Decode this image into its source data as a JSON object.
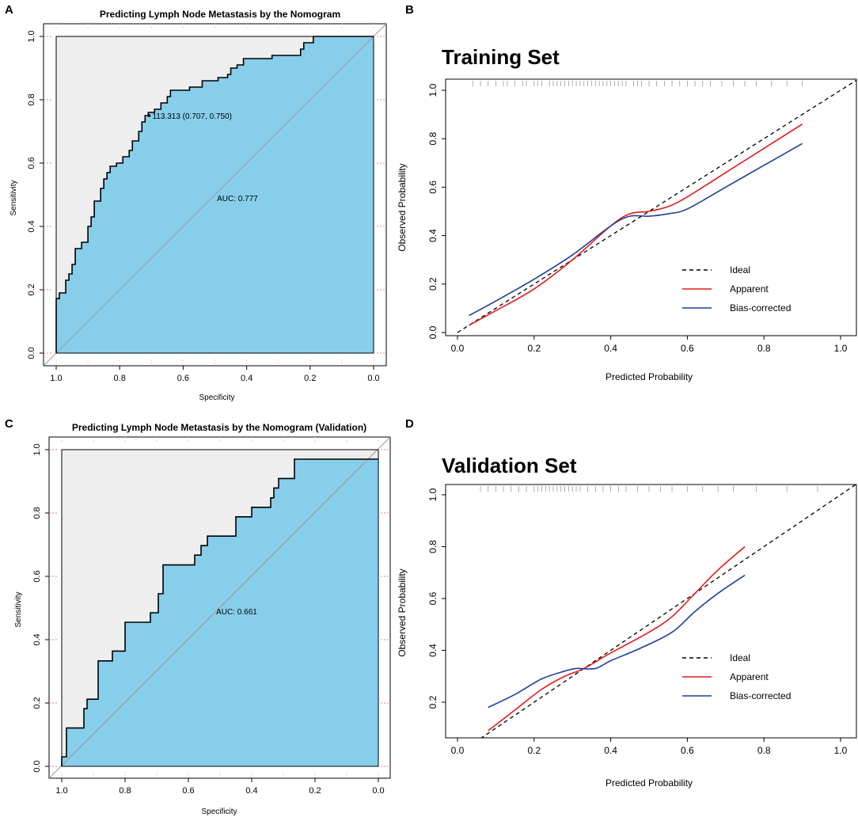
{
  "colors": {
    "roc_fill": "#87CEEB",
    "roc_background": "#EEEEEE",
    "roc_curve": "#000000",
    "diagonal": "#999999",
    "grid_x": "#E8D890",
    "grid_y": "#F08080",
    "ideal": "#000000",
    "apparent": "#E41A1C",
    "bias_corrected": "#1F3F9A",
    "rug": "#999999"
  },
  "panels": {
    "A": {
      "letter": "A"
    },
    "B": {
      "letter": "B"
    },
    "C": {
      "letter": "C"
    },
    "D": {
      "letter": "D"
    }
  },
  "chart_data": [
    {
      "id": "A",
      "type": "area",
      "title": "Predicting Lymph Node Metastasis by the Nomogram",
      "xlabel": "Specificity",
      "ylabel": "Sensitivity",
      "xlim": [
        1.0,
        0.0
      ],
      "ylim": [
        0.0,
        1.0
      ],
      "x_ticks": [
        "1.0",
        "0.8",
        "0.6",
        "0.4",
        "0.2",
        "0.0"
      ],
      "y_ticks": [
        "0.0",
        "0.2",
        "0.4",
        "0.6",
        "0.8",
        "1.0"
      ],
      "annotations": {
        "best_threshold": "113.313 (0.707, 0.750)",
        "auc": "AUC: 0.777"
      },
      "roc": [
        [
          1.0,
          0.0
        ],
        [
          1.0,
          0.172
        ],
        [
          0.99,
          0.172
        ],
        [
          0.99,
          0.19
        ],
        [
          0.97,
          0.19
        ],
        [
          0.97,
          0.23
        ],
        [
          0.96,
          0.23
        ],
        [
          0.96,
          0.25
        ],
        [
          0.95,
          0.25
        ],
        [
          0.95,
          0.28
        ],
        [
          0.94,
          0.28
        ],
        [
          0.94,
          0.33
        ],
        [
          0.92,
          0.33
        ],
        [
          0.92,
          0.35
        ],
        [
          0.9,
          0.35
        ],
        [
          0.9,
          0.4
        ],
        [
          0.89,
          0.4
        ],
        [
          0.89,
          0.43
        ],
        [
          0.88,
          0.43
        ],
        [
          0.88,
          0.48
        ],
        [
          0.86,
          0.48
        ],
        [
          0.86,
          0.52
        ],
        [
          0.85,
          0.52
        ],
        [
          0.85,
          0.55
        ],
        [
          0.84,
          0.55
        ],
        [
          0.84,
          0.57
        ],
        [
          0.83,
          0.57
        ],
        [
          0.83,
          0.59
        ],
        [
          0.81,
          0.59
        ],
        [
          0.81,
          0.6
        ],
        [
          0.79,
          0.6
        ],
        [
          0.79,
          0.62
        ],
        [
          0.77,
          0.62
        ],
        [
          0.77,
          0.64
        ],
        [
          0.76,
          0.64
        ],
        [
          0.76,
          0.67
        ],
        [
          0.74,
          0.67
        ],
        [
          0.74,
          0.7
        ],
        [
          0.73,
          0.7
        ],
        [
          0.73,
          0.73
        ],
        [
          0.72,
          0.73
        ],
        [
          0.72,
          0.75
        ],
        [
          0.71,
          0.75
        ],
        [
          0.71,
          0.76
        ],
        [
          0.69,
          0.76
        ],
        [
          0.69,
          0.77
        ],
        [
          0.67,
          0.77
        ],
        [
          0.67,
          0.79
        ],
        [
          0.65,
          0.79
        ],
        [
          0.65,
          0.81
        ],
        [
          0.64,
          0.81
        ],
        [
          0.64,
          0.83
        ],
        [
          0.58,
          0.83
        ],
        [
          0.58,
          0.84
        ],
        [
          0.54,
          0.84
        ],
        [
          0.54,
          0.86
        ],
        [
          0.49,
          0.86
        ],
        [
          0.49,
          0.87
        ],
        [
          0.46,
          0.87
        ],
        [
          0.46,
          0.88
        ],
        [
          0.45,
          0.88
        ],
        [
          0.45,
          0.9
        ],
        [
          0.43,
          0.9
        ],
        [
          0.43,
          0.91
        ],
        [
          0.41,
          0.91
        ],
        [
          0.41,
          0.93
        ],
        [
          0.32,
          0.93
        ],
        [
          0.32,
          0.94
        ],
        [
          0.23,
          0.94
        ],
        [
          0.23,
          0.96
        ],
        [
          0.22,
          0.96
        ],
        [
          0.22,
          0.98
        ],
        [
          0.19,
          0.98
        ],
        [
          0.19,
          1.0
        ],
        [
          0.0,
          1.0
        ]
      ]
    },
    {
      "id": "B",
      "type": "line",
      "title": "Training Set",
      "xlabel": "Predicted Probability",
      "ylabel": "Observed Probability",
      "xlim": [
        0.0,
        1.0
      ],
      "ylim": [
        0.0,
        1.0
      ],
      "x_ticks": [
        "0.0",
        "0.2",
        "0.4",
        "0.6",
        "0.8",
        "1.0"
      ],
      "y_ticks": [
        "0.0",
        "0.2",
        "0.4",
        "0.6",
        "0.8",
        "1.0"
      ],
      "legend": [
        "Ideal",
        "Apparent",
        "Bias-corrected"
      ],
      "legend_position": "bottom-right",
      "series": [
        {
          "name": "Ideal",
          "style": "dashed",
          "points": [
            [
              0.0,
              0.0
            ],
            [
              1.05,
              1.05
            ]
          ]
        },
        {
          "name": "Apparent",
          "points": [
            [
              0.03,
              0.03
            ],
            [
              0.1,
              0.09
            ],
            [
              0.2,
              0.18
            ],
            [
              0.3,
              0.3
            ],
            [
              0.4,
              0.44
            ],
            [
              0.45,
              0.49
            ],
            [
              0.5,
              0.5
            ],
            [
              0.55,
              0.52
            ],
            [
              0.6,
              0.56
            ],
            [
              0.7,
              0.66
            ],
            [
              0.8,
              0.76
            ],
            [
              0.9,
              0.86
            ]
          ]
        },
        {
          "name": "Bias-corrected",
          "points": [
            [
              0.03,
              0.07
            ],
            [
              0.1,
              0.13
            ],
            [
              0.2,
              0.22
            ],
            [
              0.3,
              0.32
            ],
            [
              0.4,
              0.44
            ],
            [
              0.45,
              0.48
            ],
            [
              0.5,
              0.48
            ],
            [
              0.55,
              0.49
            ],
            [
              0.6,
              0.51
            ],
            [
              0.7,
              0.6
            ],
            [
              0.8,
              0.69
            ],
            [
              0.9,
              0.78
            ]
          ]
        }
      ],
      "rug": [
        0.04,
        0.06,
        0.08,
        0.1,
        0.12,
        0.13,
        0.15,
        0.17,
        0.18,
        0.2,
        0.21,
        0.22,
        0.24,
        0.25,
        0.26,
        0.27,
        0.28,
        0.29,
        0.3,
        0.31,
        0.32,
        0.33,
        0.34,
        0.35,
        0.36,
        0.37,
        0.38,
        0.39,
        0.4,
        0.41,
        0.42,
        0.43,
        0.44,
        0.46,
        0.47,
        0.48,
        0.5,
        0.52,
        0.54,
        0.56,
        0.58,
        0.6,
        0.62,
        0.64,
        0.66,
        0.69,
        0.72,
        0.75,
        0.78,
        0.82,
        0.86,
        0.9
      ]
    },
    {
      "id": "C",
      "type": "area",
      "title": "Predicting Lymph Node Metastasis by the Nomogram (Validation)",
      "xlabel": "Specificity",
      "ylabel": "Sensitivity",
      "xlim": [
        1.0,
        0.0
      ],
      "ylim": [
        0.0,
        1.0
      ],
      "x_ticks": [
        "1.0",
        "0.8",
        "0.6",
        "0.4",
        "0.2",
        "0.0"
      ],
      "y_ticks": [
        "0.0",
        "0.2",
        "0.4",
        "0.6",
        "0.8",
        "1.0"
      ],
      "annotations": {
        "auc": "AUC: 0.661"
      },
      "roc": [
        [
          1.0,
          0.0
        ],
        [
          1.0,
          0.03
        ],
        [
          0.985,
          0.03
        ],
        [
          0.985,
          0.121
        ],
        [
          0.93,
          0.121
        ],
        [
          0.93,
          0.182
        ],
        [
          0.92,
          0.182
        ],
        [
          0.92,
          0.212
        ],
        [
          0.885,
          0.212
        ],
        [
          0.885,
          0.333
        ],
        [
          0.84,
          0.333
        ],
        [
          0.84,
          0.364
        ],
        [
          0.8,
          0.364
        ],
        [
          0.8,
          0.455
        ],
        [
          0.72,
          0.455
        ],
        [
          0.72,
          0.485
        ],
        [
          0.695,
          0.485
        ],
        [
          0.695,
          0.545
        ],
        [
          0.68,
          0.545
        ],
        [
          0.68,
          0.636
        ],
        [
          0.58,
          0.636
        ],
        [
          0.58,
          0.667
        ],
        [
          0.56,
          0.667
        ],
        [
          0.56,
          0.697
        ],
        [
          0.54,
          0.697
        ],
        [
          0.54,
          0.727
        ],
        [
          0.45,
          0.727
        ],
        [
          0.45,
          0.788
        ],
        [
          0.4,
          0.788
        ],
        [
          0.4,
          0.818
        ],
        [
          0.34,
          0.818
        ],
        [
          0.34,
          0.848
        ],
        [
          0.33,
          0.848
        ],
        [
          0.33,
          0.879
        ],
        [
          0.315,
          0.879
        ],
        [
          0.315,
          0.909
        ],
        [
          0.265,
          0.909
        ],
        [
          0.265,
          0.97
        ],
        [
          0.0,
          0.97
        ]
      ]
    },
    {
      "id": "D",
      "type": "line",
      "title": "Validation Set",
      "xlabel": "Predicted Probability",
      "ylabel": "Observed Probability",
      "xlim": [
        0.0,
        1.0
      ],
      "ylim": [
        0.1,
        1.0
      ],
      "x_ticks": [
        "0.0",
        "0.2",
        "0.4",
        "0.6",
        "0.8",
        "1.0"
      ],
      "y_ticks": [
        "0.2",
        "0.4",
        "0.6",
        "0.8",
        "1.0"
      ],
      "legend": [
        "Ideal",
        "Apparent",
        "Bias-corrected"
      ],
      "legend_position": "bottom-right",
      "series": [
        {
          "name": "Ideal",
          "style": "dashed",
          "points": [
            [
              0.06,
              0.06
            ],
            [
              1.05,
              1.05
            ]
          ]
        },
        {
          "name": "Apparent",
          "points": [
            [
              0.08,
              0.09
            ],
            [
              0.15,
              0.17
            ],
            [
              0.22,
              0.25
            ],
            [
              0.28,
              0.3
            ],
            [
              0.33,
              0.33
            ],
            [
              0.4,
              0.39
            ],
            [
              0.5,
              0.47
            ],
            [
              0.56,
              0.53
            ],
            [
              0.62,
              0.62
            ],
            [
              0.68,
              0.71
            ],
            [
              0.75,
              0.8
            ]
          ]
        },
        {
          "name": "Bias-corrected",
          "points": [
            [
              0.08,
              0.18
            ],
            [
              0.15,
              0.23
            ],
            [
              0.22,
              0.29
            ],
            [
              0.28,
              0.32
            ],
            [
              0.31,
              0.33
            ],
            [
              0.36,
              0.33
            ],
            [
              0.4,
              0.36
            ],
            [
              0.48,
              0.41
            ],
            [
              0.56,
              0.47
            ],
            [
              0.62,
              0.55
            ],
            [
              0.68,
              0.62
            ],
            [
              0.75,
              0.69
            ]
          ]
        }
      ],
      "rug": [
        0.06,
        0.08,
        0.1,
        0.12,
        0.14,
        0.16,
        0.18,
        0.2,
        0.21,
        0.22,
        0.23,
        0.24,
        0.25,
        0.26,
        0.27,
        0.28,
        0.29,
        0.3,
        0.31,
        0.32,
        0.34,
        0.36,
        0.38,
        0.4,
        0.42,
        0.44,
        0.47,
        0.5,
        0.53,
        0.56,
        0.6,
        0.64,
        0.68,
        0.72,
        0.78,
        0.86,
        0.94
      ]
    }
  ]
}
